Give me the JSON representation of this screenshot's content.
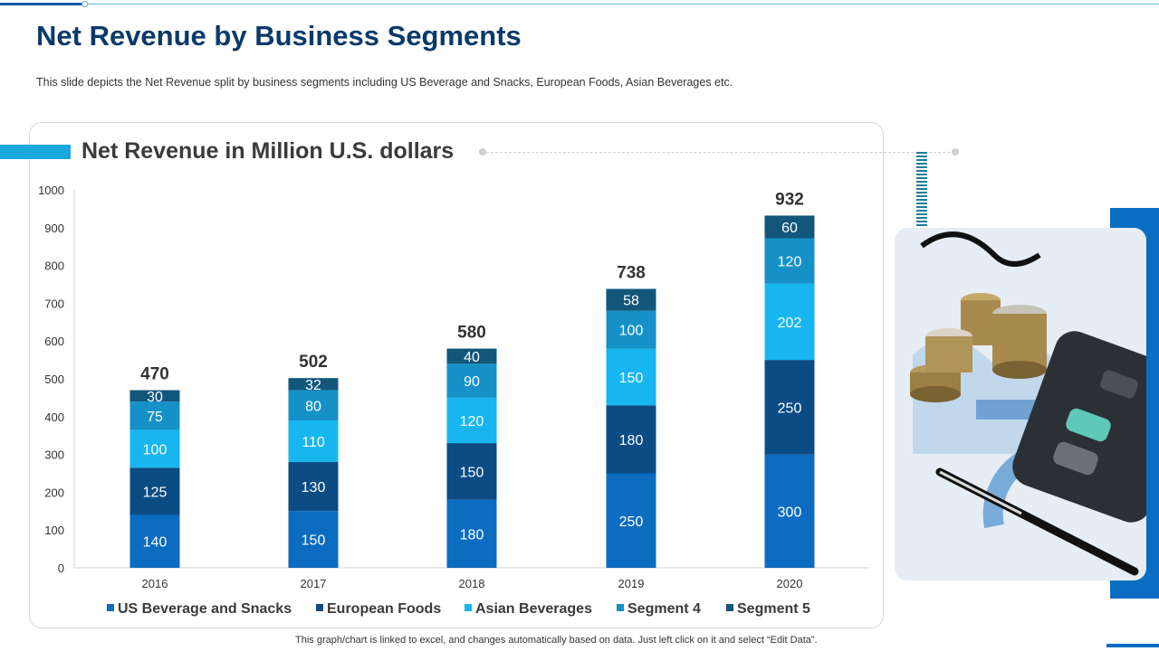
{
  "page": {
    "title": "Net Revenue by Business Segments",
    "subtitle": "This slide depicts the Net Revenue  split by business segments including US Beverage  and Snacks, European Foods, Asian Beverages  etc.",
    "footnote": "This graph/chart is linked to excel,  and changes automatically based on data. Just left click on it and select “Edit Data”.",
    "image_icon": "finance-photo-coins-calculator-pen"
  },
  "chart_data": {
    "type": "bar",
    "stacked": true,
    "title": "Net Revenue in Million U.S. dollars",
    "categories": [
      "2016",
      "2017",
      "2018",
      "2019",
      "2020"
    ],
    "totals": [
      470,
      502,
      580,
      738,
      932
    ],
    "ylim": [
      0,
      1000
    ],
    "yticks": [
      0,
      100,
      200,
      300,
      400,
      500,
      600,
      700,
      800,
      900,
      1000
    ],
    "legend_position": "bottom",
    "grid": false,
    "series": [
      {
        "name": "US Beverage and Snacks",
        "color": "#0b6cc0",
        "values": [
          140,
          150,
          180,
          250,
          300
        ]
      },
      {
        "name": "European Foods",
        "color": "#0b4c84",
        "values": [
          125,
          130,
          150,
          180,
          250
        ]
      },
      {
        "name": "Asian Beverages",
        "color": "#18b6f0",
        "values": [
          100,
          110,
          120,
          150,
          202
        ]
      },
      {
        "name": "Segment 4",
        "color": "#1591c7",
        "values": [
          75,
          80,
          90,
          100,
          120
        ]
      },
      {
        "name": "Segment 5",
        "color": "#12567a",
        "values": [
          30,
          32,
          40,
          58,
          60
        ]
      }
    ]
  }
}
